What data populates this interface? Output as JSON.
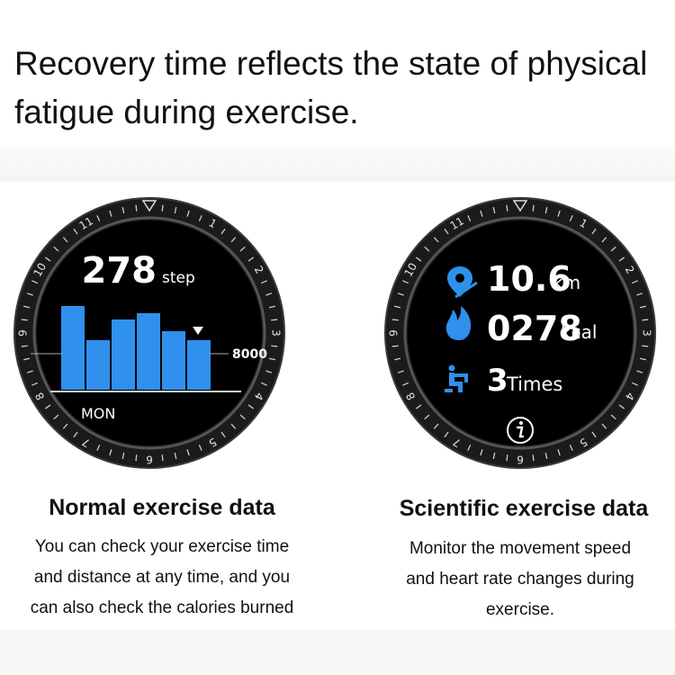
{
  "headline": "Recovery time reflects the state of physical fatigue during exercise.",
  "bezel_numbers": [
    "11",
    "1",
    "2",
    "3",
    "4",
    "5",
    "6",
    "7",
    "8",
    "9",
    "10"
  ],
  "left_watch": {
    "steps_value": "278",
    "steps_unit": "step",
    "goal_label": "8000",
    "day_label": "MON",
    "bar_levels": [
      0.93,
      0.55,
      0.78,
      0.85,
      0.65,
      0.55
    ],
    "bar_color": "#2f90ee",
    "marker_icon": "down-triangle-icon"
  },
  "right_watch": {
    "distance_icon": "location-pin-icon",
    "distance_value": "10.6",
    "distance_unit": "km",
    "calorie_icon": "flame-icon",
    "calorie_value": "0278",
    "calorie_unit": "kcal",
    "exercise_icon": "seated-person-icon",
    "exercise_value": "3",
    "exercise_unit": "Times",
    "info_icon": "info-icon",
    "icon_color": "#2f90ee"
  },
  "left_panel": {
    "title": "Normal exercise data",
    "desc_lines": [
      "You can check your exercise time",
      "and distance at any time, and you",
      "can also check the calories burned"
    ]
  },
  "right_panel": {
    "title": "Scientific exercise data",
    "desc_lines": [
      "Monitor the movement speed",
      "and heart rate changes during",
      "exercise."
    ]
  }
}
